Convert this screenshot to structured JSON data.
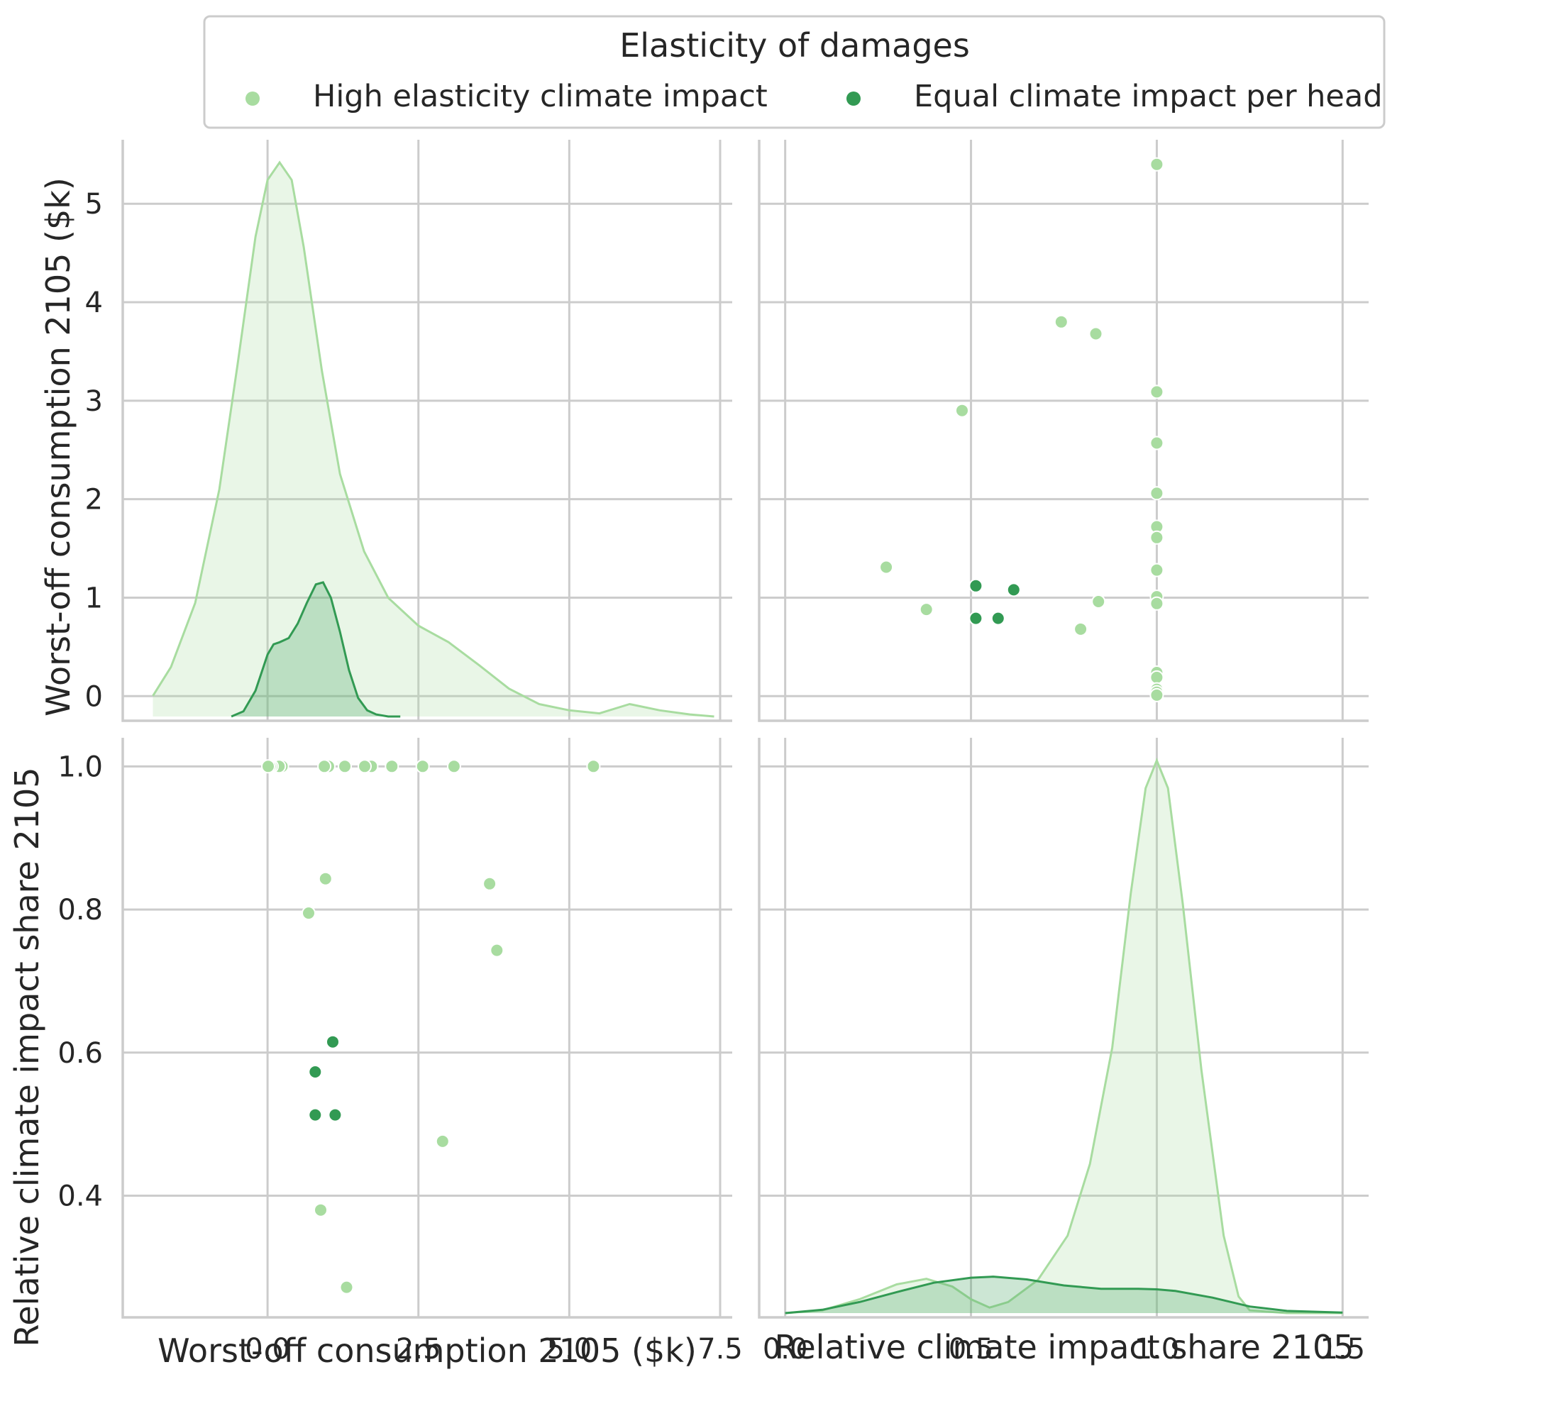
{
  "chart_data": {
    "type": "pairplot",
    "legend": {
      "title": "Elasticity of damages",
      "placement": "top-center",
      "entries": [
        {
          "label": "High elasticity climate impact",
          "color": "#a8dca0"
        },
        {
          "label": "Equal climate impact per head",
          "color": "#329a53"
        }
      ]
    },
    "variables": [
      {
        "label": "Worst-off consumption 2105 ($k)",
        "lim": [
          -2.4,
          7.7
        ],
        "ticks": [
          0.0,
          2.5,
          5.0,
          7.5
        ],
        "tick_labels": [
          "0.0",
          "2.5",
          "5.0",
          "7.5"
        ]
      },
      {
        "label": "Relative climate impact share 2105",
        "lim": [
          -0.07,
          1.57
        ],
        "ticks": [
          0.0,
          0.5,
          1.0,
          1.5
        ],
        "tick_labels": [
          "0.0",
          "0.5",
          "1.0",
          "1.5"
        ]
      }
    ],
    "row_axes": [
      {
        "label": "Worst-off consumption 2105 ($k)",
        "lim": [
          -0.25,
          5.65
        ],
        "ticks": [
          0,
          1,
          2,
          3,
          4,
          5
        ],
        "tick_labels": [
          "0",
          "1",
          "2",
          "3",
          "4",
          "5"
        ]
      },
      {
        "label": "Relative climate impact share 2105",
        "lim": [
          0.23,
          1.04
        ],
        "ticks": [
          0.4,
          0.6,
          0.8,
          1.0
        ],
        "tick_labels": [
          "0.4",
          "0.6",
          "0.8",
          "1.0"
        ]
      }
    ],
    "grid": true,
    "series": [
      {
        "name": "High elasticity climate impact",
        "color": "#a8dca0",
        "points": [
          {
            "consumption": 5.4,
            "share": 1.0
          },
          {
            "consumption": 3.8,
            "share": 0.743
          },
          {
            "consumption": 3.68,
            "share": 0.836
          },
          {
            "consumption": 3.09,
            "share": 1.0
          },
          {
            "consumption": 2.9,
            "share": 0.476
          },
          {
            "consumption": 2.57,
            "share": 1.0
          },
          {
            "consumption": 2.06,
            "share": 1.0
          },
          {
            "consumption": 1.72,
            "share": 1.0
          },
          {
            "consumption": 1.61,
            "share": 1.0
          },
          {
            "consumption": 1.31,
            "share": 0.272
          },
          {
            "consumption": 1.28,
            "share": 1.0
          },
          {
            "consumption": 1.01,
            "share": 1.0
          },
          {
            "consumption": 0.96,
            "share": 0.843
          },
          {
            "consumption": 0.94,
            "share": 1.0
          },
          {
            "consumption": 0.88,
            "share": 0.38
          },
          {
            "consumption": 0.68,
            "share": 0.795
          },
          {
            "consumption": 0.24,
            "share": 1.0
          },
          {
            "consumption": 0.19,
            "share": 1.0
          },
          {
            "consumption": 0.07,
            "share": 1.0
          },
          {
            "consumption": 0.04,
            "share": 1.0
          },
          {
            "consumption": 0.01,
            "share": 1.0
          }
        ],
        "kde_consumption": {
          "x": [
            -1.9,
            -1.6,
            -1.2,
            -0.8,
            -0.5,
            -0.2,
            0.0,
            0.2,
            0.4,
            0.6,
            0.9,
            1.2,
            1.6,
            2.0,
            2.5,
            3.0,
            3.5,
            4.0,
            4.5,
            5.0,
            5.5,
            6.0,
            6.5,
            7.0,
            7.4
          ],
          "y": [
            0.2,
            0.48,
            1.1,
            2.2,
            3.4,
            4.65,
            5.2,
            5.37,
            5.2,
            4.55,
            3.35,
            2.35,
            1.6,
            1.15,
            0.88,
            0.72,
            0.5,
            0.27,
            0.12,
            0.06,
            0.03,
            0.12,
            0.06,
            0.02,
            0.0
          ]
        },
        "kde_share": {
          "x": [
            0.0,
            0.1,
            0.2,
            0.3,
            0.38,
            0.45,
            0.5,
            0.55,
            0.6,
            0.68,
            0.76,
            0.82,
            0.88,
            0.93,
            0.97,
            1.0,
            1.03,
            1.07,
            1.12,
            1.18,
            1.22,
            1.25,
            1.35,
            1.5
          ],
          "y": [
            0.0,
            0.005,
            0.025,
            0.052,
            0.062,
            0.048,
            0.025,
            0.01,
            0.02,
            0.06,
            0.14,
            0.27,
            0.48,
            0.76,
            0.95,
            1.0,
            0.95,
            0.74,
            0.44,
            0.14,
            0.03,
            0.005,
            0.0,
            0.0
          ]
        }
      },
      {
        "name": "Equal climate impact per head",
        "color": "#329a53",
        "points": [
          {
            "consumption": 1.12,
            "share": 0.513
          },
          {
            "consumption": 1.08,
            "share": 0.615
          },
          {
            "consumption": 0.79,
            "share": 0.513
          },
          {
            "consumption": 0.79,
            "share": 0.573
          }
        ],
        "kde_consumption": {
          "x": [
            -0.6,
            -0.4,
            -0.2,
            0.0,
            0.1,
            0.2,
            0.35,
            0.5,
            0.65,
            0.8,
            0.92,
            1.05,
            1.2,
            1.35,
            1.5,
            1.65,
            1.8,
            2.0,
            2.2
          ],
          "y": [
            0.0,
            0.05,
            0.25,
            0.6,
            0.7,
            0.72,
            0.76,
            0.9,
            1.1,
            1.28,
            1.3,
            1.15,
            0.82,
            0.45,
            0.18,
            0.06,
            0.02,
            0.0,
            0.0
          ]
        },
        "kde_share": {
          "x": [
            0.0,
            0.1,
            0.2,
            0.3,
            0.4,
            0.5,
            0.56,
            0.65,
            0.75,
            0.85,
            0.95,
            1.0,
            1.05,
            1.15,
            1.25,
            1.35,
            1.5
          ],
          "y": [
            0.0,
            0.006,
            0.02,
            0.038,
            0.055,
            0.064,
            0.066,
            0.061,
            0.05,
            0.044,
            0.044,
            0.043,
            0.04,
            0.028,
            0.012,
            0.004,
            0.001
          ]
        }
      }
    ]
  }
}
